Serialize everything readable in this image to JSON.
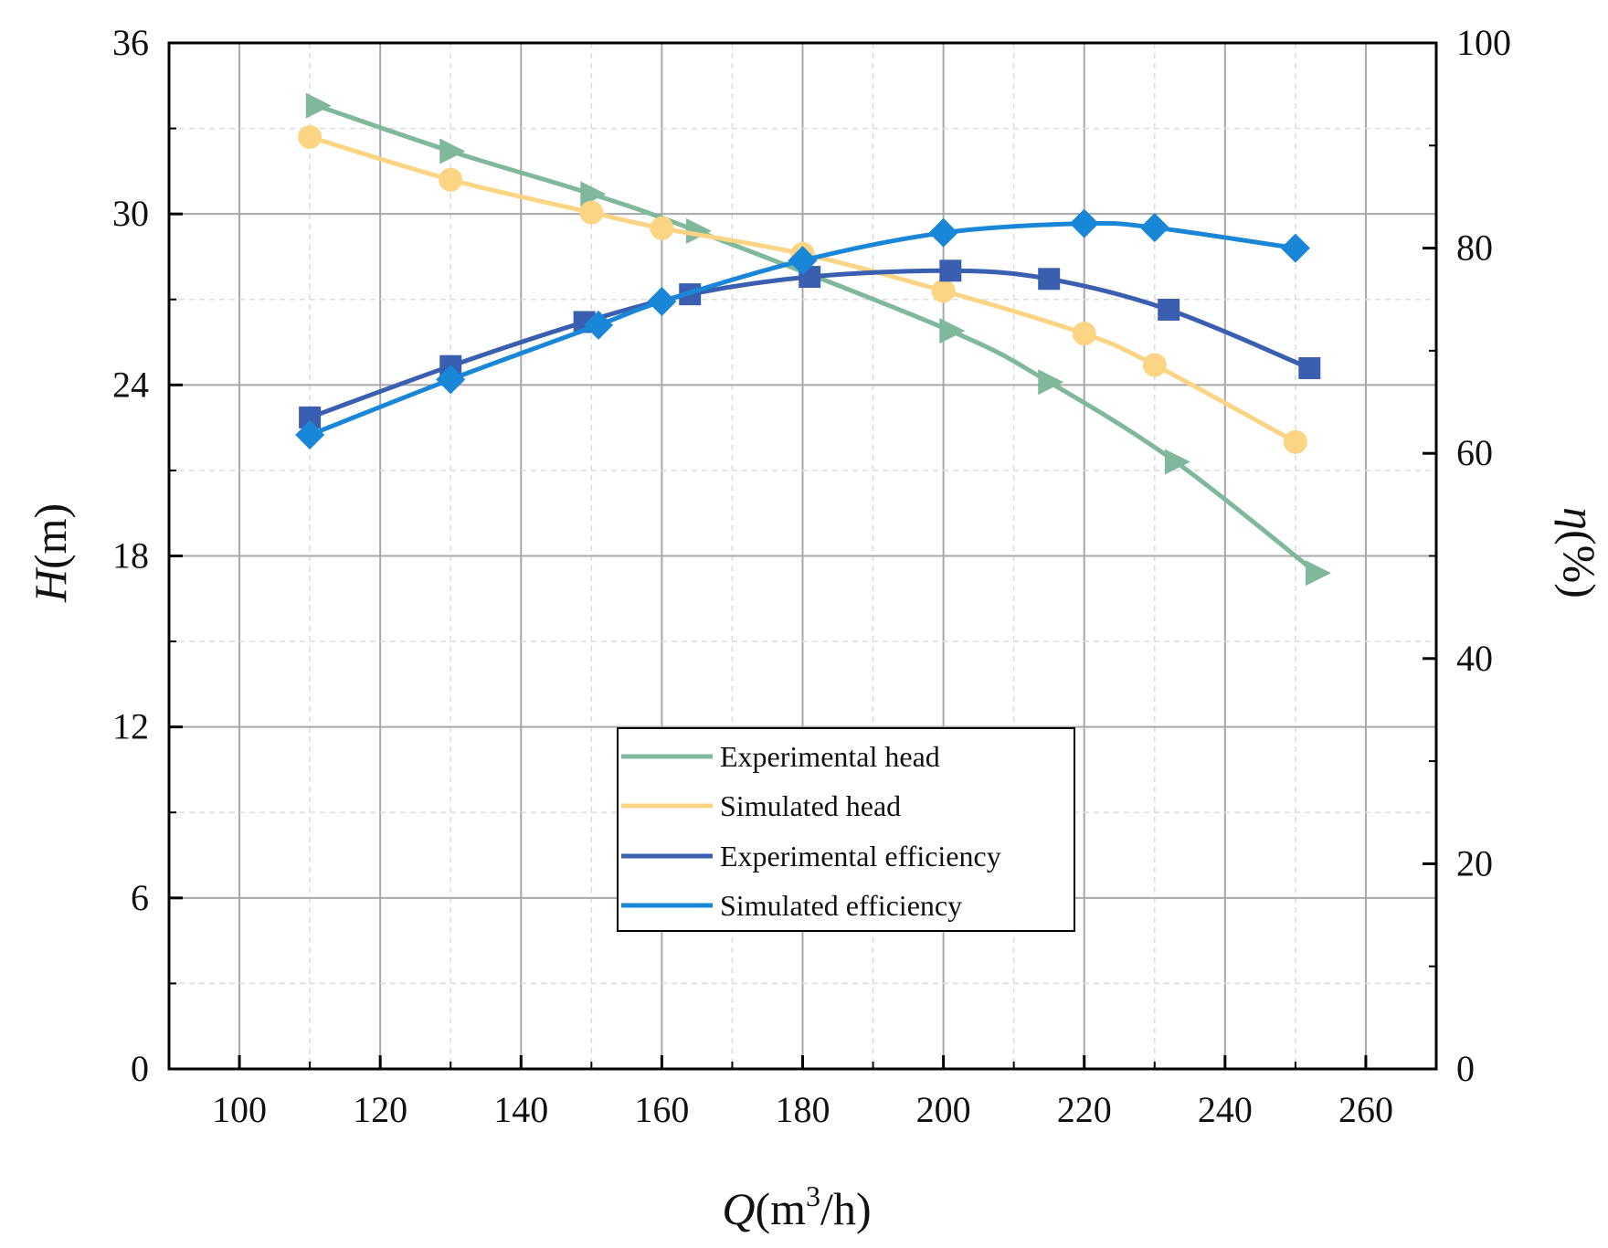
{
  "chart_data": {
    "type": "line",
    "x_axis": {
      "label_var": "Q",
      "label_pre": "(m",
      "label_sup": "3",
      "label_post": "/h)",
      "range": [
        90,
        270
      ],
      "ticks": [
        100,
        120,
        140,
        160,
        180,
        200,
        220,
        240,
        260
      ]
    },
    "y_left": {
      "label_var": "H",
      "label_unit": "(m)",
      "range": [
        0,
        36
      ],
      "ticks": [
        0,
        6,
        12,
        18,
        24,
        30,
        36
      ]
    },
    "y_right": {
      "label_var": "η",
      "label_unit": "(%)",
      "range": [
        0,
        100
      ],
      "ticks": [
        0,
        20,
        40,
        60,
        80,
        100
      ]
    },
    "grid": true,
    "legend_position": "center-bottom",
    "series": [
      {
        "name": "Experimental head",
        "axis": "left",
        "color": "#7fb89a",
        "marker": "triangle-right",
        "points": [
          [
            111,
            33.8
          ],
          [
            130,
            32.2
          ],
          [
            150,
            30.7
          ],
          [
            165,
            29.4
          ],
          [
            201,
            25.9
          ],
          [
            215,
            24.1
          ],
          [
            233,
            21.3
          ],
          [
            253,
            17.4
          ]
        ]
      },
      {
        "name": "Simulated head",
        "axis": "left",
        "color": "#fbd584",
        "marker": "circle",
        "points": [
          [
            110,
            32.7
          ],
          [
            130,
            31.2
          ],
          [
            150,
            30.05
          ],
          [
            160,
            29.5
          ],
          [
            180,
            28.6
          ],
          [
            200,
            27.3
          ],
          [
            220,
            25.8
          ],
          [
            230,
            24.7
          ],
          [
            250,
            22.0
          ]
        ]
      },
      {
        "name": "Experimental efficiency",
        "axis": "right",
        "color": "#3a5fb0",
        "marker": "square",
        "points": [
          [
            110,
            63.5
          ],
          [
            130,
            68.5
          ],
          [
            149,
            72.8
          ],
          [
            164,
            75.5
          ],
          [
            181,
            77.2
          ],
          [
            201,
            77.8
          ],
          [
            215,
            77.0
          ],
          [
            232,
            74.0
          ],
          [
            252,
            68.3
          ]
        ]
      },
      {
        "name": "Simulated efficiency",
        "axis": "right",
        "color": "#1a86d8",
        "marker": "diamond",
        "points": [
          [
            110,
            61.8
          ],
          [
            130,
            67.2
          ],
          [
            151,
            72.5
          ],
          [
            160,
            74.8
          ],
          [
            180,
            78.8
          ],
          [
            200,
            81.5
          ],
          [
            220,
            82.4
          ],
          [
            230,
            82.0
          ],
          [
            250,
            80.0
          ]
        ]
      }
    ]
  }
}
